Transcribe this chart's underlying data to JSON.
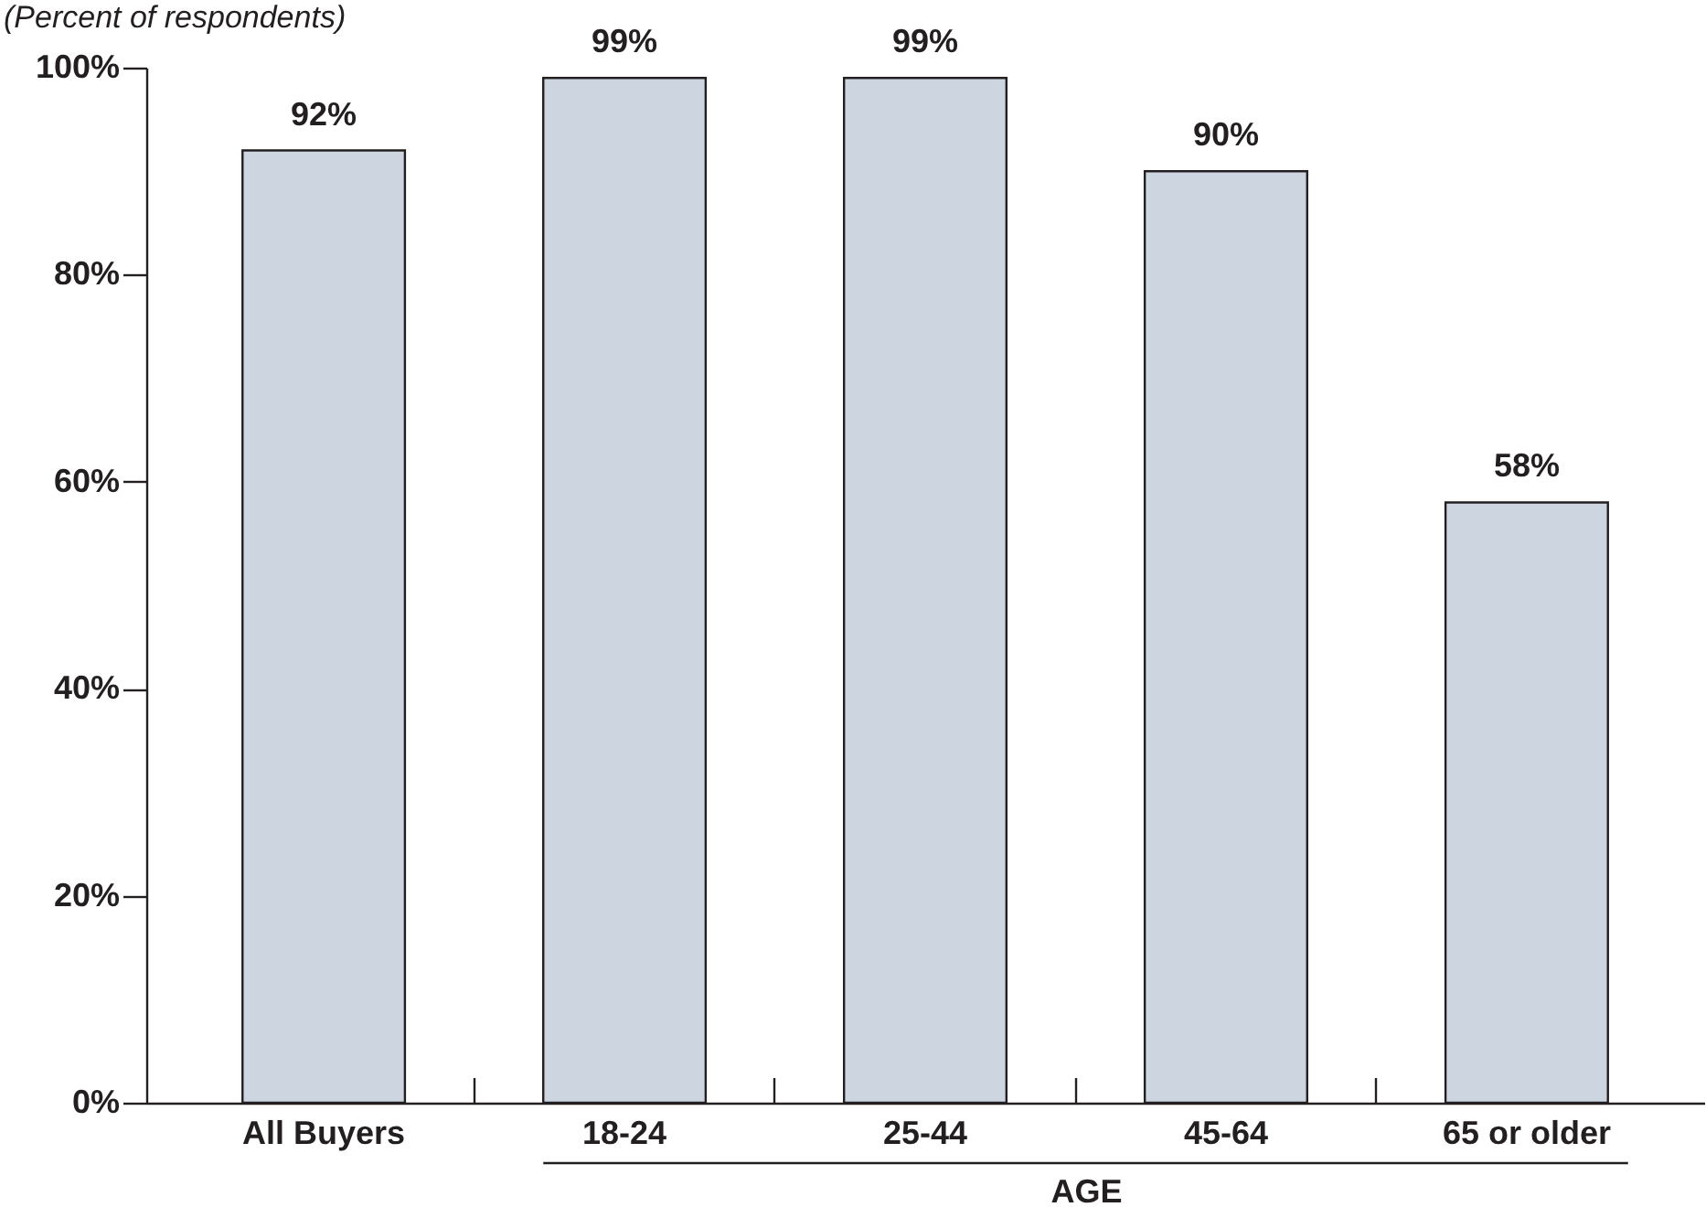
{
  "chart_data": {
    "type": "bar",
    "subtitle": "(Percent of respondents)",
    "xlabel": "AGE",
    "categories": [
      "All Buyers",
      "18-24",
      "25-44",
      "45-64",
      "65 or older"
    ],
    "values": [
      92,
      99,
      99,
      90,
      58
    ],
    "value_labels": [
      "92%",
      "99%",
      "99%",
      "90%",
      "58%"
    ],
    "color": "#cdd6e0",
    "ylim": [
      0,
      100
    ],
    "yticks": [
      {
        "value": 0,
        "label": "0%"
      },
      {
        "value": 20,
        "label": "20%"
      },
      {
        "value": 40,
        "label": "40%"
      },
      {
        "value": 60,
        "label": "60%"
      },
      {
        "value": 80,
        "label": "80%"
      },
      {
        "value": 100,
        "label": "100%"
      }
    ],
    "grid": false
  }
}
